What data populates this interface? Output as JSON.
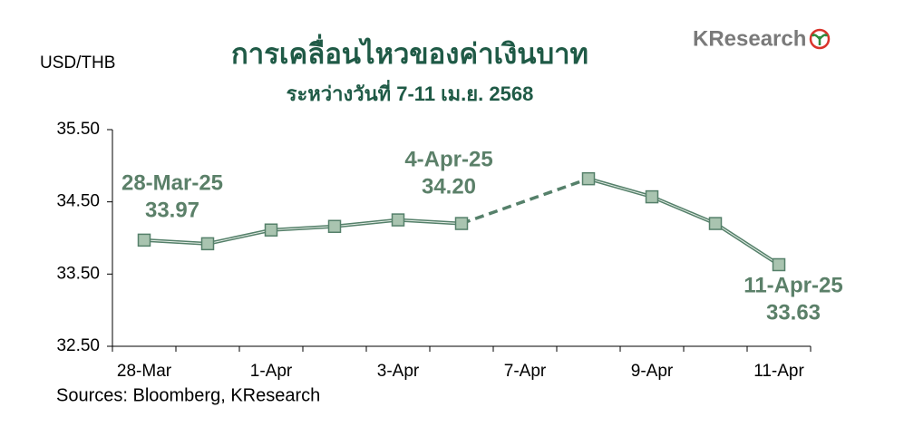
{
  "chart_data": {
    "type": "line",
    "title": "การเคลื่อนไหวของค่าเงินบาท",
    "subtitle": "ระหว่างวันที่ 7-11 เม.ย. 2568",
    "y_label": "USD/THB",
    "source": "Sources: Bloomberg, KResearch",
    "logo": "KResearch",
    "categories": [
      "28-Mar",
      null,
      "1-Apr",
      null,
      "3-Apr",
      null,
      "7-Apr",
      null,
      "9-Apr",
      null,
      "11-Apr"
    ],
    "series": [
      {
        "name": "USD/THB",
        "color": "#55806a",
        "marker_fill": "#a9c4b0",
        "values": [
          33.97,
          33.92,
          34.11,
          34.16,
          34.25,
          34.2,
          null,
          34.82,
          34.57,
          34.2,
          33.63
        ]
      }
    ],
    "gap_style": "dashed",
    "annotations": [
      {
        "label": "28-Mar-25",
        "value": "33.97"
      },
      {
        "label": "4-Apr-25",
        "value": "34.20"
      },
      {
        "label": "11-Apr-25",
        "value": "33.63"
      }
    ],
    "ylim": [
      32.5,
      35.5
    ],
    "yticks": [
      {
        "value": 32.5,
        "label": "32.50"
      },
      {
        "value": 33.5,
        "label": "33.50"
      },
      {
        "value": 34.5,
        "label": "34.50"
      },
      {
        "value": 35.5,
        "label": "35.50"
      }
    ],
    "grid": false
  }
}
